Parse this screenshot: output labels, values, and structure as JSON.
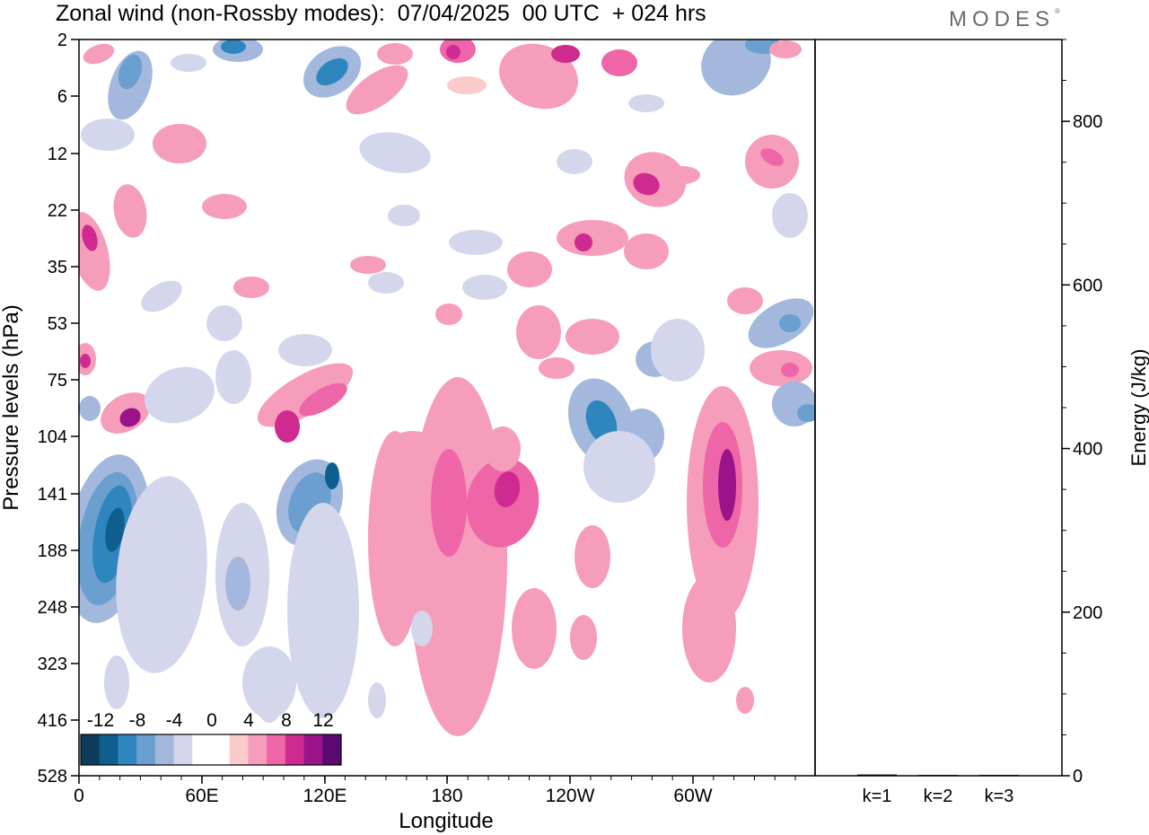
{
  "header": {
    "title": "Zonal wind (non-Rossby modes):  07/04/2025  00 UTC  + 024 hrs",
    "logo": "MODES"
  },
  "colors": {
    "negative": [
      "#0d3d5a",
      "#0f5f8e",
      "#2f86bf",
      "#6a9fd0",
      "#a3b8dc",
      "#d4d6ec"
    ],
    "zero": "#ffffff",
    "positive": [
      "#fbcaca",
      "#f59dba",
      "#ef66a8",
      "#cf2a90",
      "#9a1388",
      "#5a0a72"
    ]
  },
  "colorbar": {
    "labels": [
      "-12",
      "-8",
      "-4",
      "0",
      "4",
      "8",
      "12"
    ]
  },
  "chart_data": [
    {
      "type": "heatmap",
      "title": "Zonal wind (non-Rossby modes):  07/04/2025  00 UTC  + 024 hrs",
      "xlabel": "Longitude",
      "ylabel": "Pressure levels (hPa)",
      "x_ticks": [
        "0",
        "60E",
        "120E",
        "180",
        "120W",
        "60W"
      ],
      "y_ticks": [
        "2",
        "6",
        "12",
        "22",
        "35",
        "53",
        "75",
        "104",
        "141",
        "188",
        "248",
        "323",
        "416",
        "528"
      ],
      "colorbar_levels": [
        -12,
        -8,
        -4,
        0,
        4,
        8,
        12
      ],
      "features": [
        {
          "lon": 20,
          "p": 188,
          "value": -10
        },
        {
          "lon": 25,
          "p": 104,
          "value": 9
        },
        {
          "lon": 120,
          "p": 141,
          "value": -8
        },
        {
          "lon": 205,
          "p": 141,
          "value": 6
        },
        {
          "lon": 235,
          "p": 104,
          "value": -7
        },
        {
          "lon": 318,
          "p": 141,
          "value": 9
        },
        {
          "lon": 55,
          "p": 2,
          "value": -6
        },
        {
          "lon": 115,
          "p": 6,
          "value": -7
        }
      ]
    },
    {
      "type": "bar",
      "categories": [
        "k=1",
        "k=2",
        "k=3"
      ],
      "values": [
        1.5,
        1,
        1
      ],
      "ylabel": "Energy (J/kg)",
      "ylim": [
        0,
        900
      ],
      "y_ticks": [
        "0",
        "200",
        "400",
        "600",
        "800"
      ]
    }
  ]
}
